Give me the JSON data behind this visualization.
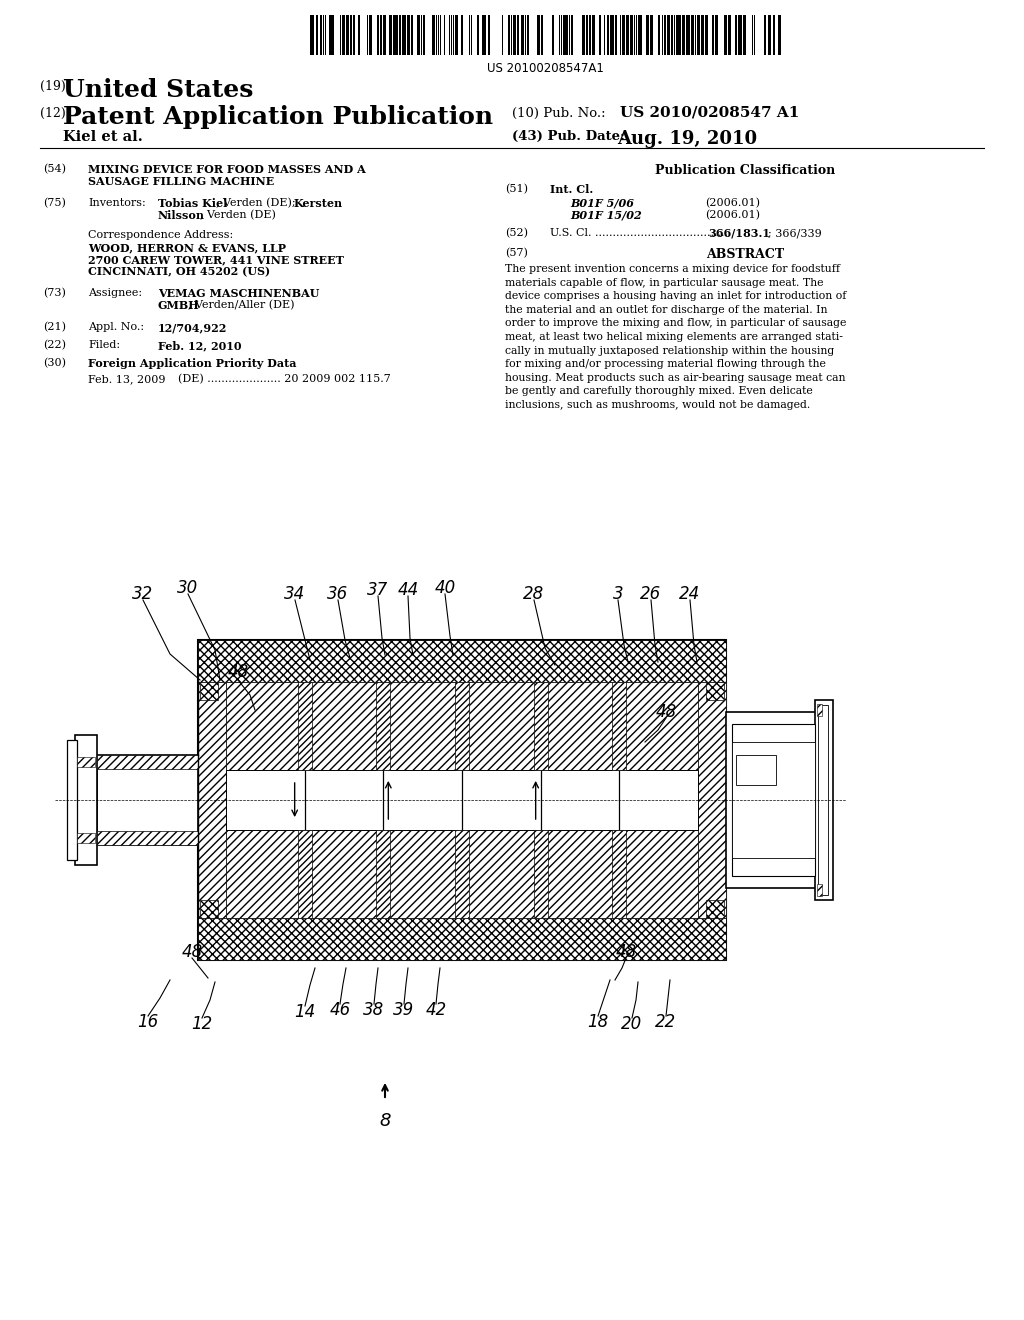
{
  "background_color": "#ffffff",
  "barcode_text": "US 20100208547A1",
  "country": "United States",
  "kind_19": "(19)",
  "kind_12": "(12)",
  "pub_type": "Patent Application Publication",
  "pub_no_label": "(10) Pub. No.:",
  "pub_no": "US 2010/0208547 A1",
  "inventor_label": "Kiel et al.",
  "pub_date_label": "(43) Pub. Date:",
  "pub_date": "Aug. 19, 2010",
  "abstract_text": "The present invention concerns a mixing device for foodstuff\nmaterials capable of flow, in particular sausage meat. The\ndevice comprises a housing having an inlet for introduction of\nthe material and an outlet for discharge of the material. In\norder to improve the mixing and flow, in particular of sausage\nmeat, at least two helical mixing elements are arranged stati-\ncally in mutually juxtaposed relationship within the housing\nfor mixing and/or processing material flowing through the\nhousing. Meat products such as air-bearing sausage meat can\nbe gently and carefully thoroughly mixed. Even delicate\ninclusions, such as mushrooms, would not be damaged."
}
